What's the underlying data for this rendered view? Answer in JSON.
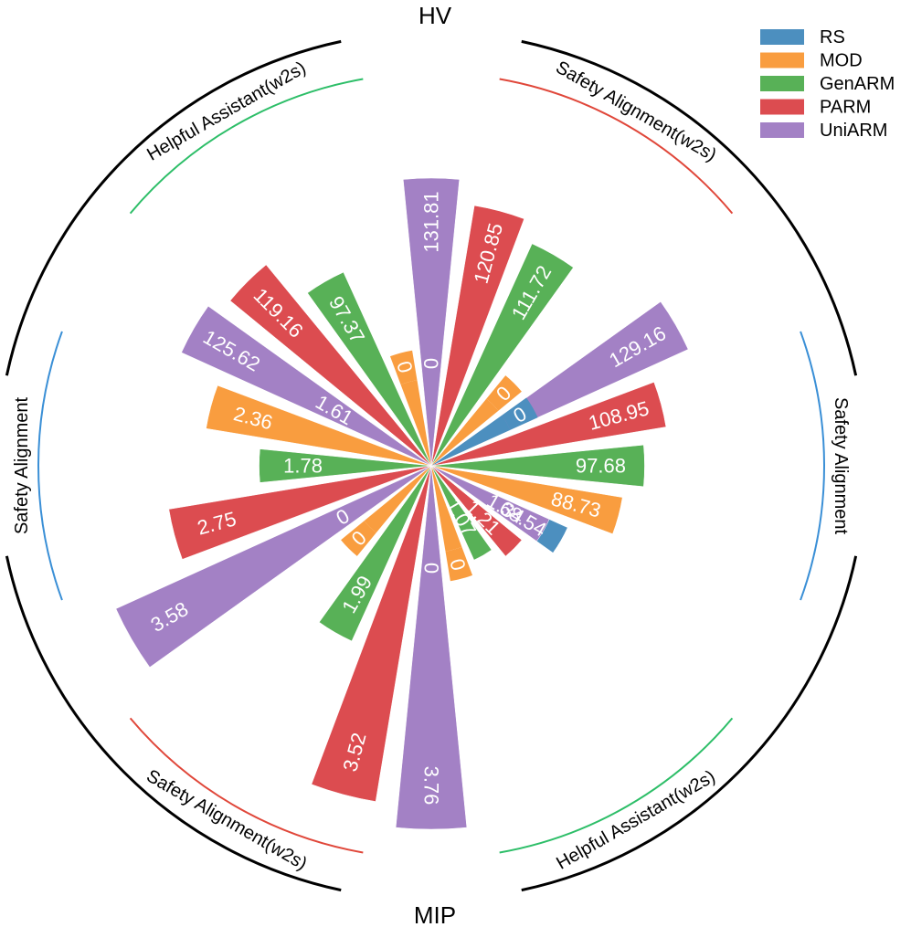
{
  "chart_data": {
    "type": "bar",
    "subtype": "polar",
    "metric_labels": {
      "top": "HV",
      "bottom": "MIP"
    },
    "methods": [
      {
        "name": "RS",
        "color": "#4C8FBF"
      },
      {
        "name": "MOD",
        "color": "#F99D3F"
      },
      {
        "name": "GenARM",
        "color": "#58B157"
      },
      {
        "name": "PARM",
        "color": "#DC4C50"
      },
      {
        "name": "UniARM",
        "color": "#A381C5"
      }
    ],
    "legend_position": "top-right",
    "groups": [
      {
        "label": "Safety Alignment",
        "metric": "HV",
        "arc_color": "#3A8FD6",
        "values": [
          68.54,
          88.73,
          97.68,
          108.95,
          129.16
        ],
        "labels": [
          "68.54",
          "88.73",
          "97.68",
          "108.95",
          "129.16"
        ]
      },
      {
        "label": "Helpful Assistant(w2s)",
        "metric": "MIP",
        "arc_color": "#2DBE68",
        "values": [
          0,
          0,
          1.07,
          1.21,
          1.34
        ],
        "labels": [
          "0",
          "0",
          "1.07",
          "1.21",
          "1.34"
        ]
      },
      {
        "label": "Safety Alignment(w2s)",
        "metric": "MIP",
        "arc_color": "#E0473A",
        "values": [
          0,
          0,
          1.99,
          3.52,
          3.76
        ],
        "labels": [
          "0",
          "0",
          "1.99",
          "3.52",
          "3.76"
        ]
      },
      {
        "label": "Safety Alignment",
        "metric": "MIP",
        "arc_color": "#3A8FD6",
        "values": [
          1.61,
          2.36,
          1.78,
          2.75,
          3.58
        ],
        "labels": [
          "1.61",
          "2.36",
          "1.78",
          "2.75",
          "3.58"
        ]
      },
      {
        "label": "Helpful Assistant(w2s)",
        "metric": "HV",
        "arc_color": "#2DBE68",
        "values": [
          0,
          0,
          97.37,
          119.16,
          125.62
        ],
        "labels": [
          "0",
          "0",
          "97.37",
          "119.16",
          "125.62"
        ]
      },
      {
        "label": "Safety Alignment(w2s)",
        "metric": "HV",
        "arc_color": "#E0473A",
        "values": [
          0,
          0,
          111.72,
          120.85,
          131.81
        ],
        "labels": [
          "0",
          "0",
          "111.72",
          "120.85",
          "131.81"
        ]
      }
    ]
  }
}
